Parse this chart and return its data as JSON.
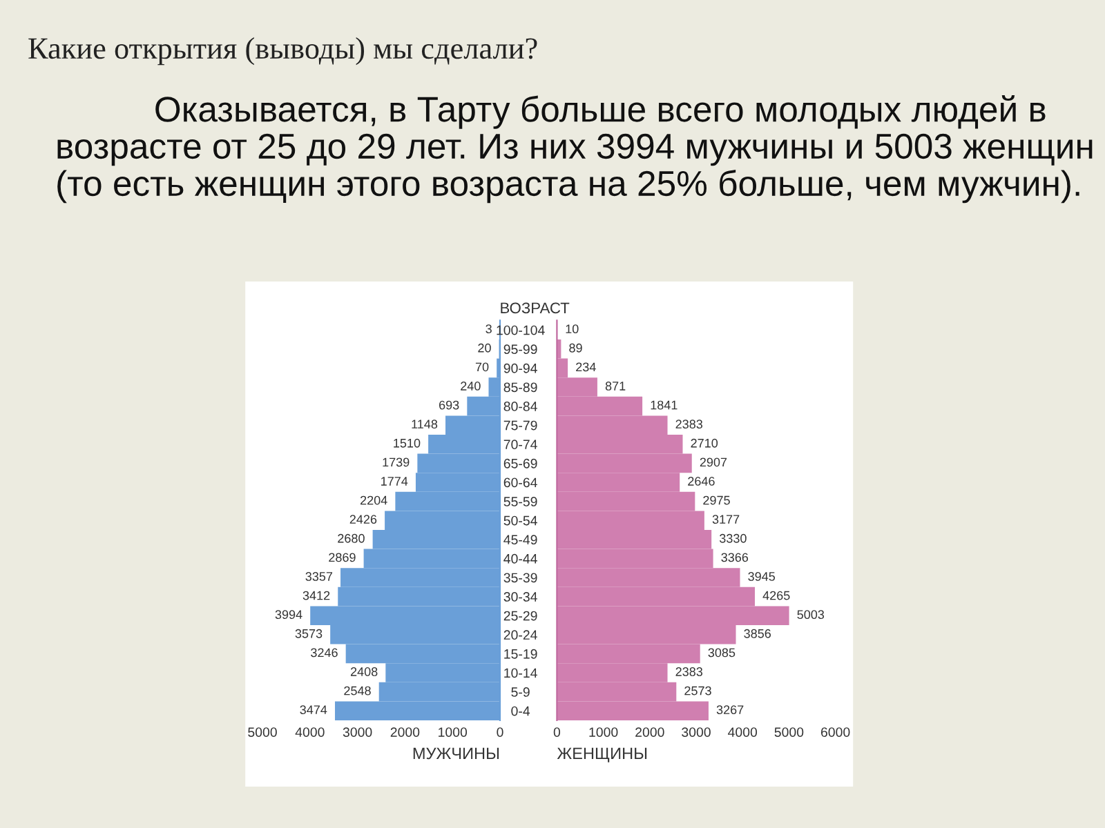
{
  "chart_data": [
    {
      "type": "bar",
      "orientation": "horizontal",
      "title": "Какие открытия (выводы) мы сделали?",
      "subtitle": "Оказывается, в Тарту больше всего молодых людей в возрасте от 25 до 29 лет. Из них 3994 мужчины и 5003 женщин (то есть женщин этого возраста на 25% больше, чем мужчин).",
      "xlabel": "МУЖЧИНЫ",
      "categories": [
        null,
        null,
        null,
        null,
        null,
        null,
        null,
        null,
        null,
        null,
        null,
        null,
        null,
        null,
        null,
        null,
        null,
        null,
        null,
        null,
        null
      ],
      "series": [
        {
          "color": "#6a9fd8",
          "values": [
            3,
            20,
            70,
            240,
            693,
            1148,
            1510,
            1739,
            1774,
            2204,
            2426,
            2680,
            2869,
            3357,
            3412,
            3994,
            3573,
            3246,
            2408,
            2548,
            3474
          ]
        }
      ],
      "xlim": [
        5000,
        0
      ],
      "xticks": [
        5000,
        4000,
        3000,
        2000,
        1000,
        0
      ],
      "tick_labels": "x",
      "data_labels": true,
      "grid": false
    },
    {
      "type": "bar",
      "orientation": "horizontal",
      "xlabel": "ЖЕНЩИНЫ",
      "ylabel": "ВОЗРАСТ",
      "categories": [
        "100-104",
        "95-99",
        "90-94",
        "85-89",
        "80-84",
        "75-79",
        "70-74",
        "65-69",
        "60-64",
        "55-59",
        "50-54",
        "45-49",
        "40-44",
        "35-39",
        "30-34",
        "25-29",
        "20-24",
        "15-19",
        "10-14",
        "5-9",
        "0-4"
      ],
      "series": [
        {
          "color": "#d07fb0",
          "values": [
            10,
            89,
            234,
            871,
            1841,
            2383,
            2710,
            2907,
            2646,
            2975,
            3177,
            3330,
            3366,
            3945,
            4265,
            5003,
            3856,
            3085,
            2383,
            2573,
            3267
          ]
        }
      ],
      "xlim": [
        0,
        6000
      ],
      "xticks": [
        0,
        1000,
        2000,
        3000,
        4000,
        5000,
        6000
      ],
      "data_labels": true,
      "grid": false
    }
  ]
}
